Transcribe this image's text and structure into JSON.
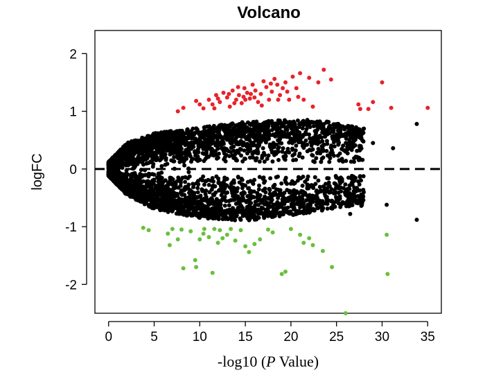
{
  "chart_data": {
    "type": "scatter",
    "title": "Volcano",
    "xlabel_prefix": "-log10 (",
    "xlabel_italic": "P",
    "xlabel_suffix": " Value)",
    "ylabel": "logFC",
    "xlim": [
      -1.5,
      36.5
    ],
    "ylim": [
      -2.5,
      2.4
    ],
    "x_ticks": [
      0,
      5,
      10,
      15,
      20,
      25,
      30,
      35
    ],
    "y_ticks": [
      -2,
      -1,
      0,
      1,
      2
    ],
    "grid": false,
    "legend": "none",
    "reference_line": {
      "y": 0,
      "style": "dashed"
    },
    "colors": {
      "up": "#e8222a",
      "down": "#6abf3b",
      "ns": "#000000"
    },
    "bulk_shape": {
      "description_free": true,
      "ns_upper_envelope": [
        [
          0,
          0.12
        ],
        [
          2,
          0.45
        ],
        [
          5,
          0.62
        ],
        [
          10,
          0.72
        ],
        [
          15,
          0.82
        ],
        [
          20,
          0.85
        ],
        [
          24,
          0.82
        ],
        [
          28,
          0.7
        ]
      ],
      "ns_lower_envelope": [
        [
          0,
          -0.12
        ],
        [
          2,
          -0.45
        ],
        [
          5,
          -0.7
        ],
        [
          10,
          -0.85
        ],
        [
          15,
          -0.9
        ],
        [
          20,
          -0.8
        ],
        [
          24,
          -0.72
        ],
        [
          26,
          -0.65
        ]
      ],
      "gap_start_x": 9,
      "gap_half_width": 0.12
    },
    "up_points": [
      [
        7.6,
        1.0
      ],
      [
        8.2,
        1.06
      ],
      [
        9.6,
        1.18
      ],
      [
        10.0,
        1.12
      ],
      [
        10.4,
        1.05
      ],
      [
        11.0,
        1.2
      ],
      [
        11.4,
        1.12
      ],
      [
        11.8,
        1.28
      ],
      [
        12.2,
        1.16
      ],
      [
        12.6,
        1.32
      ],
      [
        13.0,
        1.24
      ],
      [
        13.3,
        1.08
      ],
      [
        13.6,
        1.36
      ],
      [
        14.0,
        1.2
      ],
      [
        14.3,
        1.28
      ],
      [
        14.6,
        1.14
      ],
      [
        14.9,
        1.4
      ],
      [
        15.2,
        1.32
      ],
      [
        15.5,
        1.22
      ],
      [
        15.8,
        1.46
      ],
      [
        16.1,
        1.36
      ],
      [
        16.4,
        1.16
      ],
      [
        16.7,
        1.3
      ],
      [
        17.0,
        1.52
      ],
      [
        17.3,
        1.42
      ],
      [
        17.6,
        1.2
      ],
      [
        17.9,
        1.34
      ],
      [
        18.2,
        1.56
      ],
      [
        18.5,
        1.46
      ],
      [
        18.8,
        1.28
      ],
      [
        19.1,
        1.4
      ],
      [
        19.4,
        1.5
      ],
      [
        19.8,
        1.2
      ],
      [
        20.2,
        1.6
      ],
      [
        20.6,
        1.4
      ],
      [
        21.0,
        1.66
      ],
      [
        21.4,
        1.2
      ],
      [
        22.0,
        1.58
      ],
      [
        22.4,
        1.08
      ],
      [
        23.0,
        1.5
      ],
      [
        23.6,
        1.72
      ],
      [
        24.4,
        1.55
      ],
      [
        27.4,
        1.12
      ],
      [
        27.6,
        1.04
      ],
      [
        28.5,
        1.04
      ],
      [
        29.0,
        1.16
      ],
      [
        30.0,
        1.5
      ],
      [
        31.0,
        1.06
      ],
      [
        35.0,
        1.06
      ],
      [
        14.2,
        1.42
      ],
      [
        15.0,
        1.2
      ],
      [
        16.0,
        1.24
      ],
      [
        13.8,
        1.14
      ],
      [
        12.0,
        1.22
      ],
      [
        17.8,
        1.48
      ],
      [
        18.6,
        1.2
      ],
      [
        16.8,
        1.1
      ],
      [
        15.6,
        1.3
      ],
      [
        14.8,
        1.25
      ],
      [
        19.6,
        1.34
      ],
      [
        20.8,
        1.25
      ],
      [
        13.2,
        1.3
      ],
      [
        11.6,
        1.05
      ]
    ],
    "down_points": [
      [
        3.8,
        -1.02
      ],
      [
        4.4,
        -1.06
      ],
      [
        6.5,
        -1.12
      ],
      [
        6.7,
        -1.32
      ],
      [
        7.0,
        -1.04
      ],
      [
        7.6,
        -1.22
      ],
      [
        8.0,
        -1.05
      ],
      [
        8.2,
        -1.72
      ],
      [
        9.0,
        -1.08
      ],
      [
        9.5,
        -1.58
      ],
      [
        9.6,
        -1.7
      ],
      [
        10.0,
        -1.22
      ],
      [
        10.5,
        -1.04
      ],
      [
        11.0,
        -1.18
      ],
      [
        11.4,
        -1.8
      ],
      [
        11.6,
        -1.04
      ],
      [
        12.0,
        -1.28
      ],
      [
        12.5,
        -1.2
      ],
      [
        13.0,
        -1.14
      ],
      [
        13.4,
        -1.04
      ],
      [
        13.9,
        -1.24
      ],
      [
        14.5,
        -1.06
      ],
      [
        15.0,
        -1.34
      ],
      [
        15.4,
        -1.44
      ],
      [
        16.0,
        -1.3
      ],
      [
        17.5,
        -1.05
      ],
      [
        18.0,
        -1.1
      ],
      [
        19.0,
        -1.82
      ],
      [
        19.4,
        -1.78
      ],
      [
        20.0,
        -1.04
      ],
      [
        21.0,
        -1.14
      ],
      [
        21.4,
        -1.28
      ],
      [
        22.0,
        -1.2
      ],
      [
        22.4,
        -1.32
      ],
      [
        23.5,
        -1.42
      ],
      [
        24.5,
        -1.7
      ],
      [
        26.0,
        -2.5
      ],
      [
        30.5,
        -1.14
      ],
      [
        30.6,
        -1.82
      ],
      [
        10.4,
        -1.12
      ],
      [
        12.2,
        -1.06
      ],
      [
        16.6,
        -1.22
      ]
    ],
    "ns_outliers": [
      [
        26.5,
        0.58
      ],
      [
        27.0,
        0.62
      ],
      [
        28.0,
        0.7
      ],
      [
        29.0,
        0.45
      ],
      [
        31.2,
        0.36
      ],
      [
        33.8,
        0.78
      ],
      [
        33.8,
        -0.88
      ],
      [
        30.5,
        -0.62
      ],
      [
        25.5,
        -0.62
      ],
      [
        26.5,
        -0.78
      ],
      [
        24.5,
        -0.55
      ],
      [
        23.0,
        -0.2
      ],
      [
        22.6,
        0.12
      ],
      [
        25.0,
        0.5
      ],
      [
        26.0,
        0.72
      ],
      [
        24.0,
        0.6
      ],
      [
        23.0,
        0.78
      ],
      [
        21.8,
        0.85
      ],
      [
        25.2,
        0.78
      ],
      [
        27.5,
        0.55
      ]
    ]
  }
}
